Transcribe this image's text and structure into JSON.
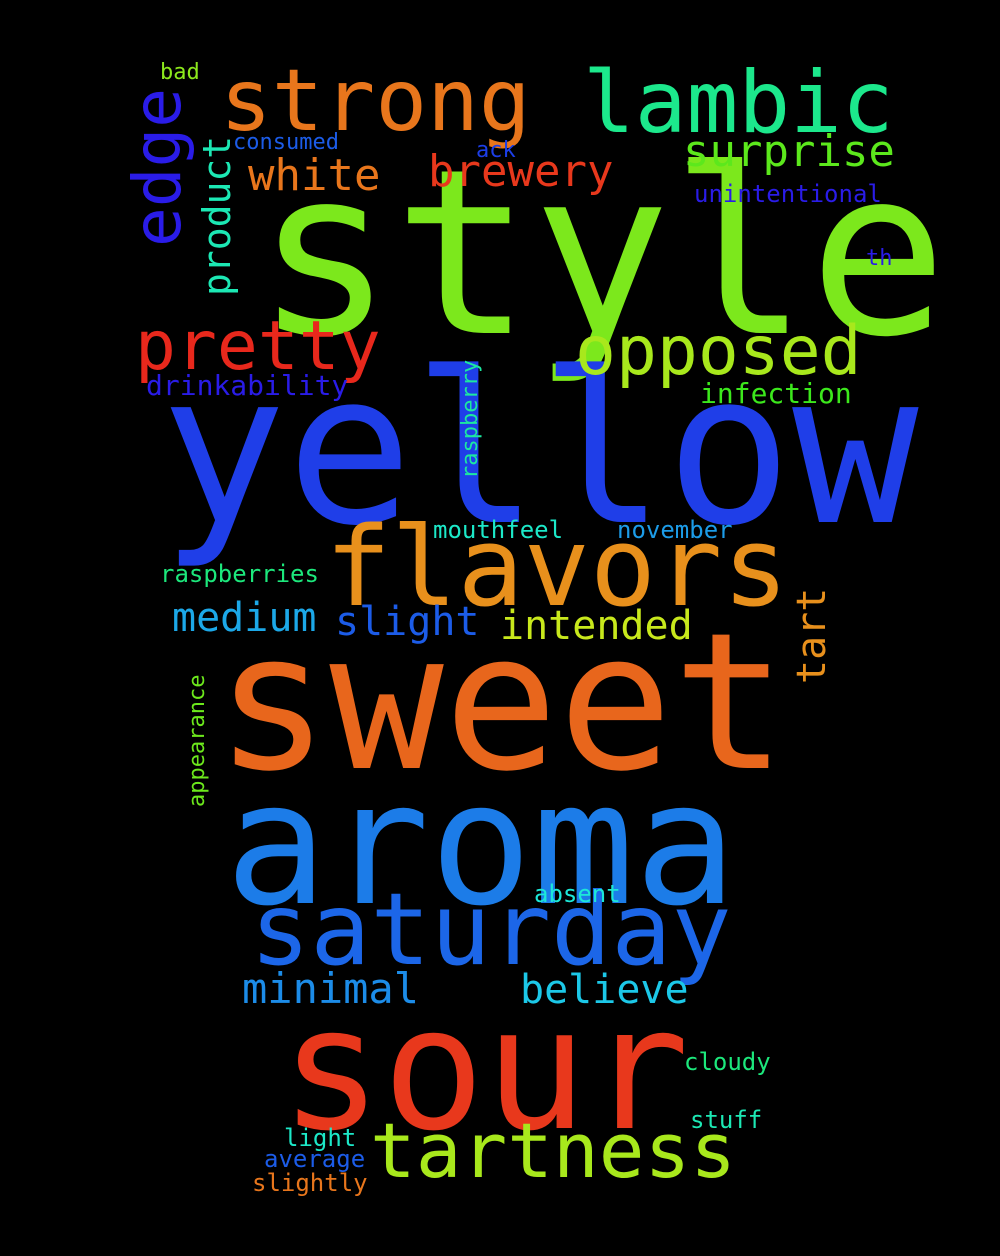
{
  "background": "#000000",
  "words": [
    {
      "text": "style",
      "color": "#7ce81c"
    },
    {
      "text": "yellow",
      "color": "#1f3ee8"
    },
    {
      "text": "sweet",
      "color": "#e8661c"
    },
    {
      "text": "aroma",
      "color": "#1c7ce8"
    },
    {
      "text": "sour",
      "color": "#e8381c"
    },
    {
      "text": "flavors",
      "color": "#e8901c"
    },
    {
      "text": "saturday",
      "color": "#1c66e8"
    },
    {
      "text": "strong",
      "color": "#e8761c"
    },
    {
      "text": "lambic",
      "color": "#1ce88c"
    },
    {
      "text": "tartness",
      "color": "#a8e81c"
    },
    {
      "text": "opposed",
      "color": "#a8e81c"
    },
    {
      "text": "pretty",
      "color": "#e8281c"
    },
    {
      "text": "edge",
      "color": "#2a1ce8"
    },
    {
      "text": "surprise",
      "color": "#5ce81c"
    },
    {
      "text": "white",
      "color": "#e8761c"
    },
    {
      "text": "brewery",
      "color": "#e8381c"
    },
    {
      "text": "product",
      "color": "#1ce8b4"
    },
    {
      "text": "intended",
      "color": "#c8e81c"
    },
    {
      "text": "medium",
      "color": "#1ca8e8"
    },
    {
      "text": "slight",
      "color": "#1c5ce8"
    },
    {
      "text": "tart",
      "color": "#e8901c"
    },
    {
      "text": "minimal",
      "color": "#1c8ce8"
    },
    {
      "text": "believe",
      "color": "#1cc8e8"
    },
    {
      "text": "drinkability",
      "color": "#2a1ce8"
    },
    {
      "text": "infection",
      "color": "#3ce81c"
    },
    {
      "text": "raspberry",
      "color": "#1ce8a0"
    },
    {
      "text": "mouthfeel",
      "color": "#1ce8c8"
    },
    {
      "text": "november",
      "color": "#1c9ce8"
    },
    {
      "text": "raspberries",
      "color": "#1ce87c"
    },
    {
      "text": "unintentional",
      "color": "#2a1ce8"
    },
    {
      "text": "consumed",
      "color": "#1c5ce8"
    },
    {
      "text": "ack",
      "color": "#1c3ee8"
    },
    {
      "text": "bad",
      "color": "#8ce81c"
    },
    {
      "text": "th",
      "color": "#2a1ce8"
    },
    {
      "text": "appearance",
      "color": "#6ce81c"
    },
    {
      "text": "absent",
      "color": "#1ce8d8"
    },
    {
      "text": "cloudy",
      "color": "#1ce87c"
    },
    {
      "text": "stuff",
      "color": "#1ce8b4"
    },
    {
      "text": "light",
      "color": "#1ce8c8"
    },
    {
      "text": "average",
      "color": "#1c5ce8"
    },
    {
      "text": "slightly",
      "color": "#e8761c"
    }
  ]
}
